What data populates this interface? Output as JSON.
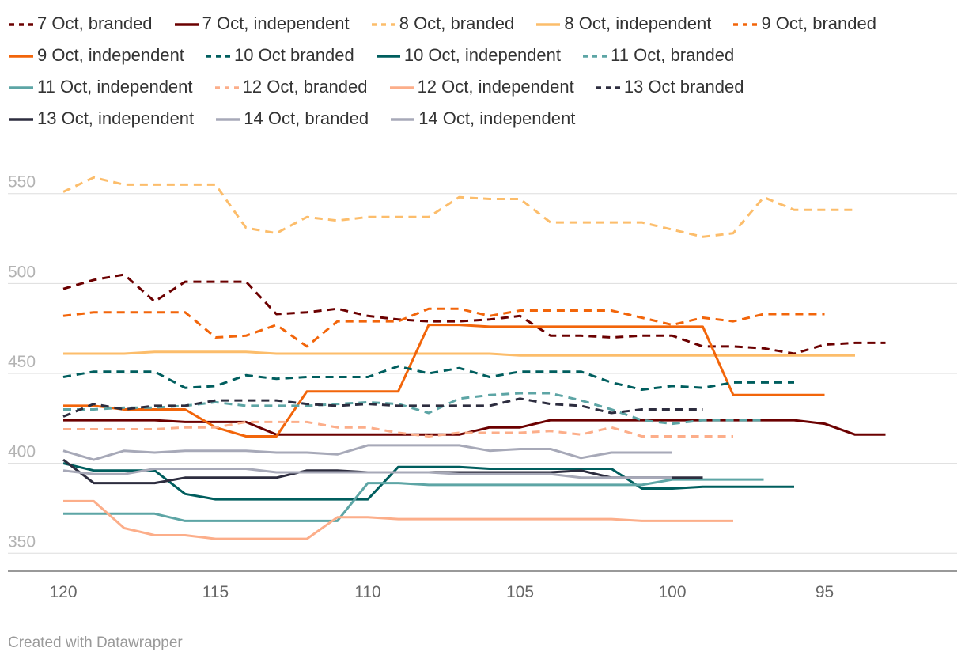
{
  "credit": "Created with Datawrapper",
  "chart_data": {
    "type": "line",
    "title": "",
    "xlabel": "",
    "ylabel": "",
    "x_reversed": true,
    "xlim": [
      120.5,
      90
    ],
    "ylim": [
      340,
      560
    ],
    "x_ticks": [
      120,
      115,
      110,
      105,
      100,
      95
    ],
    "y_ticks": [
      550,
      500,
      450,
      400,
      350
    ],
    "grid": "horizontal",
    "legend_position": "top",
    "x": [
      120,
      119,
      118,
      117,
      116,
      115,
      114,
      113,
      112,
      111,
      110,
      109,
      108,
      107,
      106,
      105,
      104,
      103,
      102,
      101,
      100,
      99,
      98,
      97,
      96,
      95,
      94,
      93
    ],
    "series": [
      {
        "name": "7 Oct, branded",
        "color": "#6b0000",
        "style": "dashed",
        "values": [
          497,
          502,
          505,
          490,
          501,
          501,
          501,
          483,
          484,
          486,
          482,
          480,
          479,
          479,
          480,
          482,
          471,
          471,
          470,
          471,
          471,
          465,
          465,
          464,
          461,
          466,
          467,
          467
        ]
      },
      {
        "name": "7 Oct, independent",
        "color": "#6b0000",
        "style": "solid",
        "values": [
          424,
          424,
          424,
          424,
          423,
          423,
          423,
          416,
          416,
          416,
          416,
          416,
          416,
          416,
          420,
          420,
          424,
          424,
          424,
          424,
          424,
          424,
          424,
          424,
          424,
          422,
          416,
          416
        ]
      },
      {
        "name": "8 Oct, branded",
        "color": "#fcbd6b",
        "style": "dashed",
        "values": [
          551,
          559,
          555,
          555,
          555,
          555,
          531,
          528,
          537,
          535,
          537,
          537,
          537,
          548,
          547,
          547,
          534,
          534,
          534,
          534,
          530,
          526,
          528,
          548,
          541,
          541,
          541,
          null
        ]
      },
      {
        "name": "8 Oct, independent",
        "color": "#fcbd6b",
        "style": "solid",
        "values": [
          461,
          461,
          461,
          462,
          462,
          462,
          462,
          461,
          461,
          461,
          461,
          461,
          461,
          461,
          461,
          460,
          460,
          460,
          460,
          460,
          460,
          460,
          460,
          460,
          460,
          460,
          460,
          null
        ]
      },
      {
        "name": "9 Oct, branded",
        "color": "#f2650a",
        "style": "dashed",
        "values": [
          482,
          484,
          484,
          484,
          484,
          470,
          471,
          477,
          465,
          479,
          479,
          479,
          486,
          486,
          482,
          485,
          485,
          485,
          485,
          481,
          477,
          481,
          479,
          483,
          483,
          483,
          null,
          null
        ]
      },
      {
        "name": "9 Oct, independent",
        "color": "#f2650a",
        "style": "solid",
        "values": [
          432,
          432,
          430,
          430,
          430,
          420,
          415,
          415,
          440,
          440,
          440,
          440,
          477,
          477,
          476,
          476,
          476,
          476,
          476,
          476,
          476,
          476,
          438,
          438,
          438,
          438,
          null,
          null
        ]
      },
      {
        "name": "10 Oct branded",
        "color": "#005e5e",
        "style": "dashed",
        "values": [
          448,
          451,
          451,
          451,
          442,
          443,
          449,
          447,
          448,
          448,
          448,
          454,
          450,
          453,
          448,
          451,
          451,
          451,
          445,
          441,
          443,
          442,
          445,
          445,
          445,
          null,
          null,
          null
        ]
      },
      {
        "name": "10 Oct, independent",
        "color": "#005e5e",
        "style": "solid",
        "values": [
          400,
          396,
          396,
          396,
          383,
          380,
          380,
          380,
          380,
          380,
          380,
          398,
          398,
          398,
          397,
          397,
          397,
          397,
          397,
          386,
          386,
          387,
          387,
          387,
          387,
          null,
          null,
          null
        ]
      },
      {
        "name": "11 Oct, branded",
        "color": "#5da5a5",
        "style": "dashed",
        "values": [
          430,
          430,
          431,
          431,
          432,
          434,
          432,
          432,
          432,
          433,
          434,
          433,
          428,
          436,
          438,
          439,
          439,
          435,
          430,
          424,
          422,
          424,
          424,
          424,
          null,
          null,
          null,
          null
        ]
      },
      {
        "name": "11 Oct, independent",
        "color": "#5da5a5",
        "style": "solid",
        "values": [
          372,
          372,
          372,
          372,
          368,
          368,
          368,
          368,
          368,
          368,
          389,
          389,
          388,
          388,
          388,
          388,
          388,
          388,
          388,
          388,
          391,
          391,
          391,
          391,
          null,
          null,
          null,
          null
        ]
      },
      {
        "name": "12 Oct, branded",
        "color": "#fcae8a",
        "style": "dashed",
        "values": [
          419,
          419,
          419,
          419,
          420,
          420,
          423,
          423,
          423,
          420,
          420,
          417,
          415,
          417,
          417,
          417,
          418,
          416,
          420,
          415,
          415,
          415,
          415,
          null,
          null,
          null,
          null,
          null
        ]
      },
      {
        "name": "12 Oct, independent",
        "color": "#fcae8a",
        "style": "solid",
        "values": [
          379,
          379,
          364,
          360,
          360,
          358,
          358,
          358,
          358,
          370,
          370,
          369,
          369,
          369,
          369,
          369,
          369,
          369,
          369,
          368,
          368,
          368,
          368,
          null,
          null,
          null,
          null,
          null
        ]
      },
      {
        "name": "13 Oct branded",
        "color": "#2d2d3f",
        "style": "dashed",
        "values": [
          426,
          433,
          430,
          432,
          432,
          435,
          435,
          435,
          433,
          432,
          433,
          432,
          432,
          432,
          432,
          436,
          433,
          432,
          428,
          430,
          430,
          430,
          null,
          null,
          null,
          null,
          null,
          null
        ]
      },
      {
        "name": "13 Oct, independent",
        "color": "#2d2d3f",
        "style": "solid",
        "values": [
          402,
          389,
          389,
          389,
          392,
          392,
          392,
          392,
          396,
          396,
          395,
          395,
          395,
          395,
          395,
          395,
          395,
          396,
          392,
          392,
          392,
          392,
          null,
          null,
          null,
          null,
          null,
          null
        ]
      },
      {
        "name": "14 Oct, branded",
        "color": "#a7a9b8",
        "style": "solid",
        "values": [
          396,
          394,
          394,
          397,
          397,
          397,
          397,
          395,
          395,
          395,
          395,
          395,
          395,
          394,
          394,
          394,
          394,
          392,
          392,
          392,
          392,
          null,
          null,
          null,
          null,
          null,
          null,
          null
        ]
      },
      {
        "name": "14 Oct, independent",
        "color": "#a7a9b8",
        "style": "solid",
        "values": [
          407,
          402,
          407,
          406,
          407,
          407,
          407,
          406,
          406,
          405,
          410,
          410,
          410,
          410,
          407,
          408,
          408,
          403,
          406,
          406,
          406,
          null,
          null,
          null,
          null,
          null,
          null,
          null
        ]
      }
    ]
  }
}
